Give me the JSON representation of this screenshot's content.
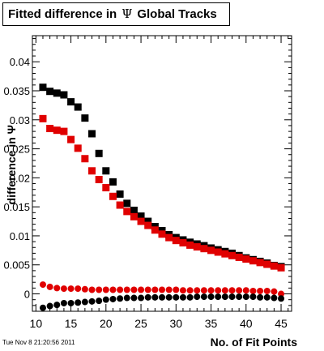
{
  "title": {
    "prefix": "Fitted difference in",
    "symbol": "Ψ",
    "suffix": "Global Tracks"
  },
  "timestamp": "Tue Nov  8 21:20:56 2011",
  "chart_data": {
    "type": "scatter",
    "title": "Fitted difference in Ψ Global Tracks",
    "xlabel": "No. of Fit Points",
    "ylabel": "difference in Ψ",
    "xlim": [
      9.5,
      46.5
    ],
    "ylim": [
      -0.003,
      0.0445
    ],
    "xticks": [
      10,
      15,
      20,
      25,
      30,
      35,
      40,
      45
    ],
    "yticks": [
      0,
      0.005,
      0.01,
      0.015,
      0.02,
      0.025,
      0.03,
      0.035,
      0.04
    ],
    "ytick_labels": [
      "0",
      "0.005",
      "0.01",
      "0.015",
      "0.02",
      "0.025",
      "0.03",
      "0.035",
      "0.04"
    ],
    "x": [
      11,
      12,
      13,
      14,
      15,
      16,
      17,
      18,
      19,
      20,
      21,
      22,
      23,
      24,
      25,
      26,
      27,
      28,
      29,
      30,
      31,
      32,
      33,
      34,
      35,
      36,
      37,
      38,
      39,
      40,
      41,
      42,
      43,
      44,
      45
    ],
    "series": [
      {
        "marker": "square",
        "color": "#000000",
        "values": [
          0.0356,
          0.0349,
          0.0346,
          0.0343,
          0.0331,
          0.0322,
          0.0303,
          0.0276,
          0.0242,
          0.0212,
          0.0193,
          0.0172,
          0.0156,
          0.0144,
          0.0134,
          0.0125,
          0.0116,
          0.0109,
          0.0102,
          0.0097,
          0.0093,
          0.0089,
          0.0086,
          0.0083,
          0.0079,
          0.0076,
          0.0073,
          0.007,
          0.0066,
          0.0062,
          0.0059,
          0.0056,
          0.0053,
          0.0049,
          0.0047
        ]
      },
      {
        "marker": "square",
        "color": "#e00000",
        "values": [
          0.0302,
          0.0285,
          0.0282,
          0.028,
          0.0266,
          0.0251,
          0.0233,
          0.0212,
          0.0197,
          0.0183,
          0.0168,
          0.0153,
          0.0142,
          0.0133,
          0.0125,
          0.0118,
          0.011,
          0.0103,
          0.0097,
          0.0092,
          0.0088,
          0.0084,
          0.0081,
          0.0078,
          0.0075,
          0.0072,
          0.0069,
          0.0066,
          0.0063,
          0.006,
          0.0057,
          0.0054,
          0.0051,
          0.0048,
          0.0045
        ]
      },
      {
        "marker": "circle",
        "color": "#e00000",
        "values": [
          0.0016,
          0.0012,
          0.001,
          0.0009,
          0.0009,
          0.0009,
          0.0008,
          0.0007,
          0.0007,
          0.0007,
          0.0007,
          0.0007,
          0.0007,
          0.0007,
          0.0007,
          0.0007,
          0.0007,
          0.0007,
          0.0007,
          0.0007,
          0.0006,
          0.0006,
          0.0006,
          0.0006,
          0.0006,
          0.0006,
          0.0006,
          0.0006,
          0.0006,
          0.0006,
          0.0005,
          0.0005,
          0.0005,
          0.0004,
          0.0
        ]
      },
      {
        "marker": "circle",
        "color": "#000000",
        "values": [
          -0.0024,
          -0.0021,
          -0.0019,
          -0.0016,
          -0.0016,
          -0.0015,
          -0.0014,
          -0.0013,
          -0.0012,
          -0.001,
          -0.0009,
          -0.0008,
          -0.0007,
          -0.0007,
          -0.0007,
          -0.0006,
          -0.0006,
          -0.0006,
          -0.0006,
          -0.0006,
          -0.0006,
          -0.0006,
          -0.0005,
          -0.0005,
          -0.0005,
          -0.0005,
          -0.0005,
          -0.0005,
          -0.0005,
          -0.0005,
          -0.0005,
          -0.0006,
          -0.0006,
          -0.0007,
          -0.0008
        ]
      }
    ]
  }
}
